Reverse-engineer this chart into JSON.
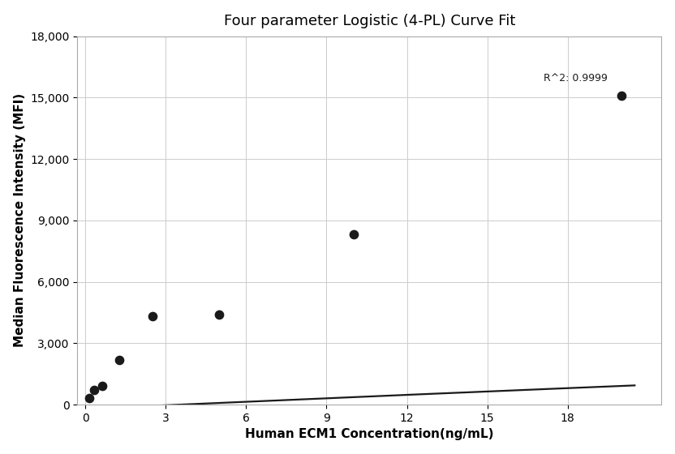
{
  "title": "Four parameter Logistic (4-PL) Curve Fit",
  "xlabel": "Human ECM1 Concentration(ng/mL)",
  "ylabel": "Median Fluorescence Intensity (MFI)",
  "scatter_x": [
    0.156,
    0.313,
    0.625,
    1.25,
    2.5,
    5.0,
    10.0,
    20.0
  ],
  "scatter_y": [
    300,
    700,
    900,
    2200,
    4300,
    4400,
    8300,
    15100
  ],
  "curve_x_start": 0.05,
  "curve_x_end": 20.5,
  "xlim": [
    -0.3,
    21.5
  ],
  "ylim": [
    0,
    18000
  ],
  "xticks": [
    0,
    3,
    6,
    9,
    12,
    15,
    18
  ],
  "yticks": [
    0,
    3000,
    6000,
    9000,
    12000,
    15000,
    18000
  ],
  "r_squared_text": "R^2: 0.9999",
  "r_squared_x": 19.5,
  "r_squared_y": 15700,
  "bg_color": "#ffffff",
  "grid_color": "#cccccc",
  "line_color": "#1a1a1a",
  "dot_color": "#1a1a1a",
  "title_fontsize": 13,
  "label_fontsize": 11,
  "tick_fontsize": 10,
  "dot_size": 55,
  "line_width": 1.6,
  "4pl_A": -200.0,
  "4pl_B": 1.02,
  "4pl_C": 300.0,
  "4pl_D": 18500.0
}
